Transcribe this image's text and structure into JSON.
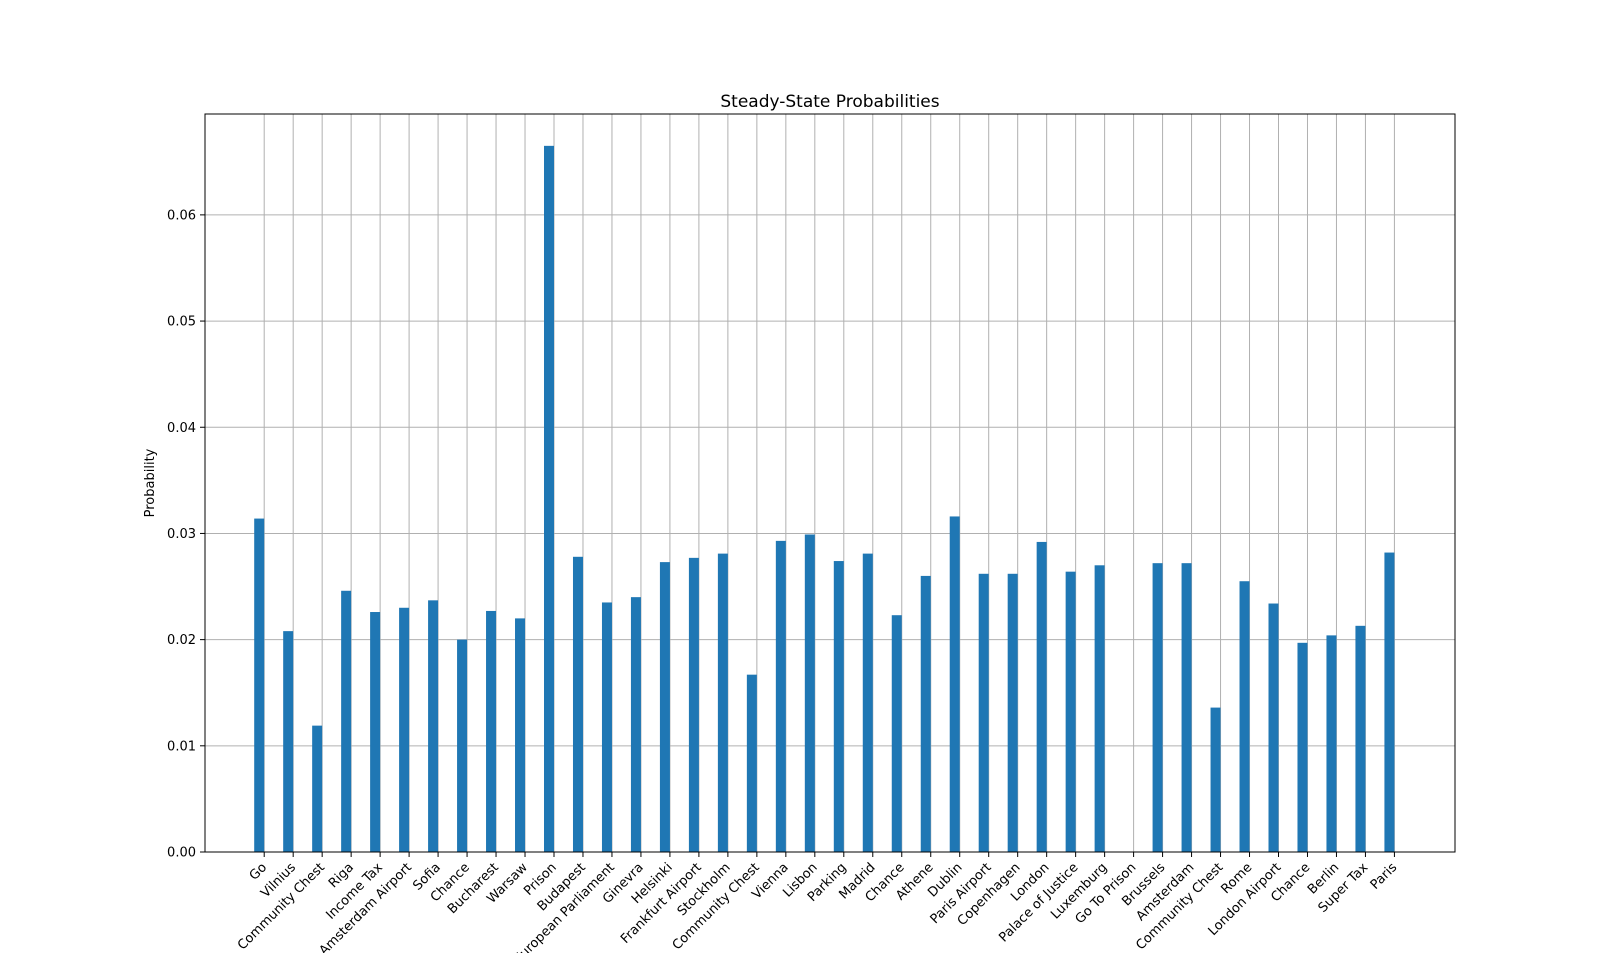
{
  "chart_data": {
    "type": "bar",
    "title": "Steady-State Probabilities",
    "xlabel": "",
    "ylabel": "Probability",
    "ylim": [
      0,
      0.0695
    ],
    "yticks": [
      "0.00",
      "0.01",
      "0.02",
      "0.03",
      "0.04",
      "0.05",
      "0.06"
    ],
    "grid": true,
    "bar_color": "#1f77b4",
    "categories": [
      "Go",
      "Vilnius",
      "Community Chest",
      "Riga",
      "Income Tax",
      "Amsterdam Airport",
      "Sofia",
      "Chance",
      "Bucharest",
      "Warsaw",
      "Prison",
      "Budapest",
      "European Parliament",
      "Ginevra",
      "Helsinki",
      "Frankfurt Airport",
      "Stockholm",
      "Community Chest",
      "Vienna",
      "Lisbon",
      "Parking",
      "Madrid",
      "Chance",
      "Athene",
      "Dublin",
      "Paris Airport",
      "Copenhagen",
      "London",
      "Palace of Justice",
      "Luxemburg",
      "Go To Prison",
      "Brussels",
      "Amsterdam",
      "Community Chest",
      "Rome",
      "London Airport",
      "Chance",
      "Berlin",
      "Super Tax",
      "Paris"
    ],
    "values": [
      0.0314,
      0.0208,
      0.0119,
      0.0246,
      0.0226,
      0.023,
      0.0237,
      0.02,
      0.0227,
      0.022,
      0.0665,
      0.0278,
      0.0235,
      0.024,
      0.0273,
      0.0277,
      0.0281,
      0.0167,
      0.0293,
      0.0299,
      0.0274,
      0.0281,
      0.0223,
      0.026,
      0.0316,
      0.0262,
      0.0262,
      0.0292,
      0.0264,
      0.027,
      0.0,
      0.0272,
      0.0272,
      0.0136,
      0.0255,
      0.0234,
      0.0197,
      0.0204,
      0.0213,
      0.0282
    ]
  }
}
